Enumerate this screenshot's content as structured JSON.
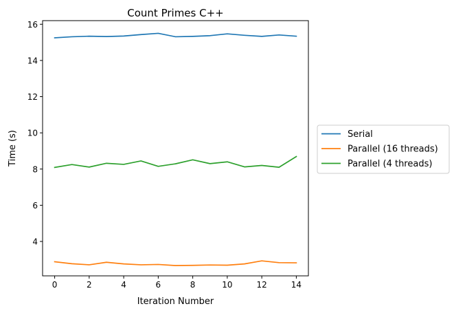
{
  "chart_data": {
    "type": "line",
    "title": "Count Primes C++",
    "xlabel": "Iteration Number",
    "ylabel": "Time (s)",
    "x": [
      0,
      1,
      2,
      3,
      4,
      5,
      6,
      7,
      8,
      9,
      10,
      11,
      12,
      13,
      14
    ],
    "xticks": [
      0,
      2,
      4,
      6,
      8,
      10,
      12,
      14
    ],
    "yticks": [
      4,
      6,
      8,
      10,
      12,
      14,
      16
    ],
    "xlim": [
      -0.7,
      14.7
    ],
    "ylim": [
      2.1,
      16.2
    ],
    "grid": false,
    "legend_position": "center-right-outside",
    "series": [
      {
        "name": "Serial",
        "color": "#1f77b4",
        "values": [
          15.25,
          15.31,
          15.34,
          15.32,
          15.35,
          15.43,
          15.5,
          15.31,
          15.33,
          15.37,
          15.47,
          15.39,
          15.33,
          15.41,
          15.34
        ]
      },
      {
        "name": "Parallel (16 threads)",
        "color": "#ff7f0e",
        "values": [
          2.88,
          2.77,
          2.71,
          2.85,
          2.76,
          2.71,
          2.73,
          2.67,
          2.68,
          2.7,
          2.69,
          2.76,
          2.93,
          2.83,
          2.82
        ]
      },
      {
        "name": "Parallel (4 threads)",
        "color": "#2ca02c",
        "values": [
          8.09,
          8.25,
          8.11,
          8.32,
          8.26,
          8.45,
          8.15,
          8.29,
          8.51,
          8.3,
          8.4,
          8.12,
          8.2,
          8.1,
          8.69
        ]
      }
    ]
  }
}
